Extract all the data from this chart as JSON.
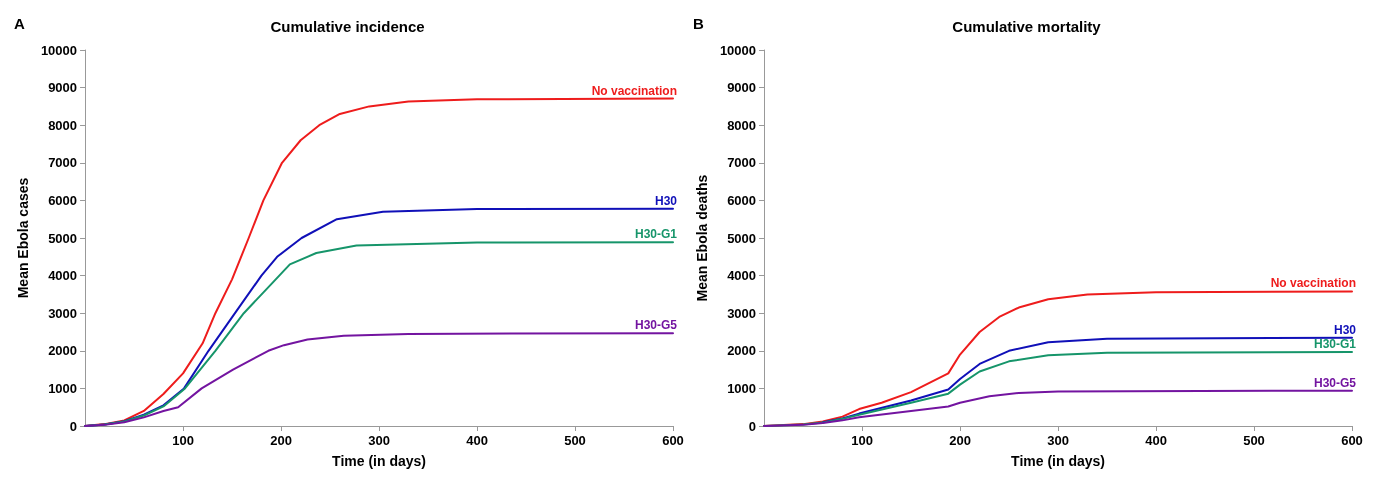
{
  "chart_data": [
    {
      "type": "line",
      "title": "Cumulative incidence",
      "annotations": [
        "A"
      ],
      "xlabel": "Time (in days)",
      "ylabel": "Mean Ebola cases",
      "xlim": [
        0,
        600
      ],
      "xticks": [
        100,
        200,
        300,
        400,
        500,
        600
      ],
      "ylim": [
        0,
        10000
      ],
      "yticks": [
        0,
        1000,
        2000,
        3000,
        4000,
        5000,
        6000,
        7000,
        8000,
        9000,
        10000
      ],
      "grid": false,
      "legend": false,
      "marker": "none",
      "line_style": "solid",
      "series": [
        {
          "name": "No vaccination",
          "color": "#ee1c1c",
          "x": [
            0,
            20,
            40,
            60,
            80,
            100,
            120,
            133,
            150,
            167,
            182,
            201,
            220,
            239,
            260,
            290,
            330,
            400,
            600
          ],
          "values": [
            0,
            50,
            150,
            400,
            850,
            1400,
            2200,
            3000,
            3900,
            5000,
            6000,
            7000,
            7600,
            8000,
            8300,
            8500,
            8630,
            8690,
            8710
          ]
        },
        {
          "name": "H30",
          "color": "#1010b8",
          "x": [
            0,
            20,
            40,
            60,
            80,
            101,
            126,
            153,
            180,
            196,
            221,
            257,
            304,
            400,
            600
          ],
          "values": [
            0,
            40,
            130,
            300,
            550,
            1000,
            2000,
            3000,
            4000,
            4500,
            5000,
            5500,
            5700,
            5770,
            5780
          ]
        },
        {
          "name": "H30-G1",
          "color": "#16956a",
          "x": [
            0,
            20,
            40,
            60,
            80,
            102,
            133,
            162,
            191,
            209,
            236,
            277,
            400,
            600
          ],
          "values": [
            0,
            40,
            120,
            280,
            520,
            1000,
            2000,
            3000,
            3800,
            4300,
            4600,
            4800,
            4880,
            4890
          ]
        },
        {
          "name": "H30-G5",
          "color": "#7314a0",
          "x": [
            0,
            20,
            40,
            60,
            80,
            95,
            119,
            151,
            187,
            203,
            227,
            264,
            330,
            600
          ],
          "values": [
            0,
            30,
            100,
            230,
            400,
            500,
            1000,
            1500,
            2000,
            2150,
            2300,
            2400,
            2450,
            2470
          ]
        }
      ]
    },
    {
      "type": "line",
      "title": "Cumulative mortality",
      "annotations": [
        "B"
      ],
      "xlabel": "Time (in days)",
      "ylabel": "Mean Ebola deaths",
      "xlim": [
        0,
        600
      ],
      "xticks": [
        100,
        200,
        300,
        400,
        500,
        600
      ],
      "ylim": [
        0,
        10000
      ],
      "yticks": [
        0,
        1000,
        2000,
        3000,
        4000,
        5000,
        6000,
        7000,
        8000,
        9000,
        10000
      ],
      "grid": false,
      "legend": false,
      "marker": "none",
      "line_style": "solid",
      "series": [
        {
          "name": "No vaccination",
          "color": "#ee1c1c",
          "x": [
            0,
            40,
            60,
            80,
            97,
            120,
            150,
            188,
            200,
            220,
            240,
            260,
            290,
            330,
            400,
            600
          ],
          "values": [
            0,
            50,
            120,
            250,
            450,
            620,
            900,
            1400,
            1900,
            2500,
            2900,
            3150,
            3370,
            3500,
            3560,
            3580
          ]
        },
        {
          "name": "H30",
          "color": "#1010b8",
          "x": [
            60,
            80,
            97,
            150,
            188,
            200,
            220,
            250,
            290,
            350,
            600
          ],
          "values": [
            100,
            200,
            330,
            680,
            970,
            1250,
            1650,
            2000,
            2230,
            2320,
            2350
          ]
        },
        {
          "name": "H30-G1",
          "color": "#16956a",
          "x": [
            0,
            40,
            60,
            80,
            97,
            150,
            188,
            200,
            220,
            250,
            290,
            350,
            600
          ],
          "values": [
            0,
            40,
            90,
            190,
            300,
            620,
            860,
            1100,
            1450,
            1720,
            1880,
            1950,
            1970
          ]
        },
        {
          "name": "H30-G5",
          "color": "#7314a0",
          "x": [
            0,
            40,
            60,
            80,
            97,
            150,
            188,
            200,
            230,
            260,
            300,
            600
          ],
          "values": [
            0,
            30,
            80,
            150,
            230,
            400,
            520,
            620,
            790,
            880,
            920,
            940
          ]
        }
      ]
    }
  ]
}
